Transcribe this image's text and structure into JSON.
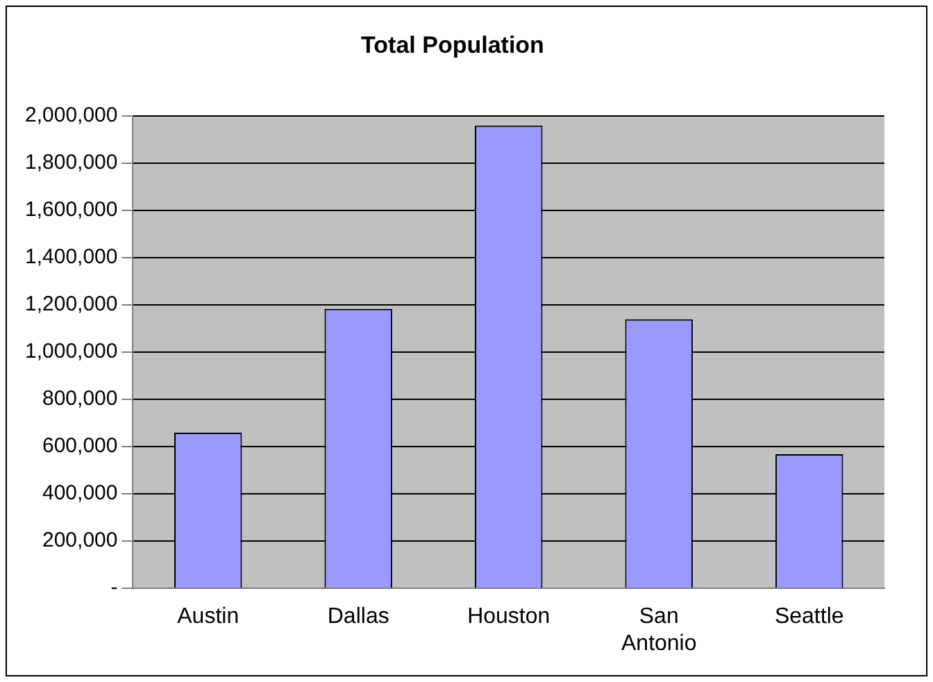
{
  "chart_data": {
    "type": "bar",
    "title": "Total Population",
    "categories": [
      "Austin",
      "Dallas",
      "Houston",
      "San Antonio",
      "Seattle"
    ],
    "values": [
      659000,
      1183000,
      1959000,
      1139000,
      568000
    ],
    "color": "#9999ff",
    "ylim": [
      0,
      2000000
    ],
    "yticks": [
      {
        "value": 0,
        "label": "-"
      },
      {
        "value": 200000,
        "label": "200,000"
      },
      {
        "value": 400000,
        "label": "400,000"
      },
      {
        "value": 600000,
        "label": "600,000"
      },
      {
        "value": 800000,
        "label": "800,000"
      },
      {
        "value": 1000000,
        "label": "1,000,000"
      },
      {
        "value": 1200000,
        "label": "1,200,000"
      },
      {
        "value": 1400000,
        "label": "1,400,000"
      },
      {
        "value": 1600000,
        "label": "1,600,000"
      },
      {
        "value": 1800000,
        "label": "1,800,000"
      },
      {
        "value": 2000000,
        "label": "2,000,000"
      }
    ],
    "grid": "y"
  }
}
